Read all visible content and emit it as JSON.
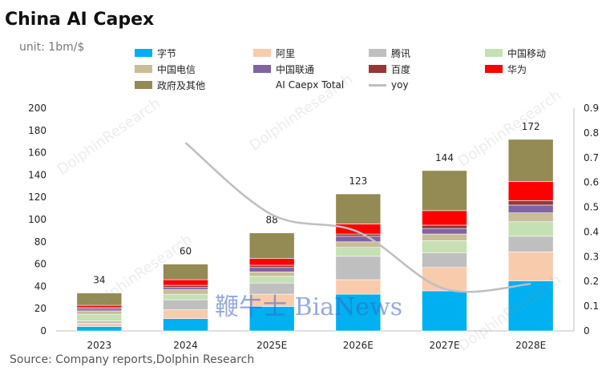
{
  "title": "China AI Capex",
  "unit": "unit: 1bm/$",
  "source": "Source: Company reports,Dolphin Research",
  "watermark_text": "DolphinResearch",
  "brand_text": "鞭牛士 BiaNews",
  "chart_data": {
    "type": "bar",
    "stacked": true,
    "categories": [
      "2023",
      "2024",
      "2025E",
      "2026E",
      "2027E",
      "2028E"
    ],
    "series": [
      {
        "name": "字节",
        "color": "#00B0F0",
        "values": [
          4,
          11,
          22,
          33,
          36,
          45
        ]
      },
      {
        "name": "阿里",
        "color": "#F8CBAD",
        "values": [
          3,
          8,
          11,
          13,
          21,
          26
        ]
      },
      {
        "name": "腾讯",
        "color": "#BFBFBF",
        "values": [
          2,
          9,
          10,
          21,
          13,
          14
        ]
      },
      {
        "name": "中国移动",
        "color": "#C5E0B3",
        "values": [
          6,
          5,
          6,
          8,
          11,
          13
        ]
      },
      {
        "name": "中国电信",
        "color": "#C9BC98",
        "values": [
          3,
          4,
          4,
          5,
          6,
          8
        ]
      },
      {
        "name": "中国联通",
        "color": "#8064A2",
        "values": [
          2,
          2,
          4,
          5,
          5,
          7
        ]
      },
      {
        "name": "百度",
        "color": "#953735",
        "values": [
          1,
          2,
          2,
          2,
          3,
          4
        ]
      },
      {
        "name": "华为",
        "color": "#FF0000",
        "values": [
          2,
          5,
          6,
          9,
          13,
          17
        ]
      },
      {
        "name": "政府及其他",
        "color": "#948A54",
        "values": [
          11,
          14,
          23,
          27,
          36,
          38
        ]
      }
    ],
    "totals_name": "AI Caepx Total",
    "totals": [
      34,
      60,
      88,
      123,
      144,
      172
    ],
    "yoy": {
      "name": "yoy",
      "color": "#BFBFBF",
      "values": [
        null,
        0.76,
        0.47,
        0.4,
        0.17,
        0.19
      ]
    },
    "ylim": [
      0,
      200
    ],
    "yticks": [
      0,
      20,
      40,
      60,
      80,
      100,
      120,
      140,
      160,
      180,
      200
    ],
    "y2lim": [
      0,
      0.9
    ],
    "y2ticks": [
      0,
      0.1,
      0.2,
      0.3,
      0.4,
      0.5,
      0.6,
      0.7,
      0.8,
      0.9
    ],
    "xlabel": "",
    "ylabel": ""
  }
}
